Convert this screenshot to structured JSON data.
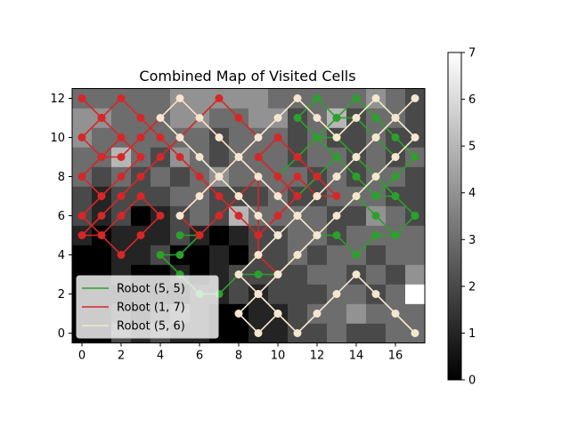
{
  "chart_data": {
    "type": "heatmap",
    "title": "Combined Map of Visited Cells",
    "xlabel": "",
    "ylabel": "",
    "xlim": [
      -0.5,
      17.5
    ],
    "ylim": [
      -0.5,
      12.5
    ],
    "x_ticks": [
      0,
      2,
      4,
      6,
      8,
      10,
      12,
      14,
      16
    ],
    "y_ticks": [
      0,
      2,
      4,
      6,
      8,
      10,
      12
    ],
    "colormap": "gray",
    "colorbar": {
      "min": 0,
      "max": 7,
      "ticks": [
        0,
        1,
        2,
        3,
        4,
        5,
        6,
        7
      ]
    },
    "legend_location": "lower-left",
    "visit_counts": [
      [
        0,
        0,
        2,
        1,
        2,
        1,
        1,
        0,
        0,
        1,
        1,
        2,
        2,
        3,
        2,
        2,
        3,
        3
      ],
      [
        0,
        0,
        1,
        0,
        1,
        2,
        1,
        0,
        0,
        1,
        1,
        2,
        3,
        3,
        4,
        3,
        3,
        3
      ],
      [
        0,
        0,
        0,
        0,
        0,
        0,
        1,
        1,
        2,
        1,
        2,
        2,
        2,
        3,
        3,
        2,
        3,
        7
      ],
      [
        0,
        0,
        1,
        0,
        0,
        1,
        0,
        1,
        2,
        2,
        2,
        2,
        3,
        3,
        2,
        3,
        2,
        4
      ],
      [
        0,
        0,
        1,
        1,
        2,
        0,
        0,
        1,
        0,
        2,
        2,
        3,
        2,
        3,
        3,
        2,
        3,
        3
      ],
      [
        1,
        0,
        1,
        1,
        1,
        2,
        1,
        0,
        1,
        2,
        2,
        3,
        3,
        2,
        3,
        3,
        3,
        3
      ],
      [
        2,
        1,
        2,
        0,
        1,
        2,
        3,
        2,
        5,
        3,
        3,
        3,
        3,
        2,
        2,
        4,
        3,
        2
      ],
      [
        2,
        1,
        2,
        2,
        2,
        3,
        3,
        2,
        2,
        2,
        3,
        2,
        2,
        3,
        3,
        3,
        2,
        2
      ],
      [
        3,
        2,
        3,
        2,
        3,
        2,
        3,
        4,
        3,
        3,
        3,
        3,
        2,
        3,
        2,
        3,
        3,
        2
      ],
      [
        3,
        3,
        5,
        3,
        2,
        4,
        3,
        2,
        3,
        3,
        3,
        2,
        3,
        3,
        2,
        3,
        2,
        3
      ],
      [
        4,
        3,
        3,
        3,
        3,
        3,
        3,
        2,
        3,
        3,
        3,
        2,
        3,
        2,
        2,
        3,
        2,
        2
      ],
      [
        4,
        4,
        3,
        3,
        3,
        4,
        4,
        3,
        3,
        4,
        4,
        2,
        3,
        5,
        2,
        3,
        3,
        2
      ],
      [
        3,
        3,
        3,
        3,
        3,
        4,
        4,
        4,
        4,
        4,
        3,
        3,
        3,
        3,
        3,
        4,
        3,
        2
      ]
    ],
    "series": [
      {
        "name": "Robot (5, 5)",
        "color": "#2ca02c",
        "x": [
          5,
          6,
          5,
          4,
          5,
          6,
          7,
          8,
          9,
          10,
          11,
          12,
          13,
          14,
          15,
          16,
          17,
          16,
          15,
          14,
          13,
          12,
          11,
          10,
          11,
          12,
          13,
          14,
          15,
          16,
          17,
          16,
          15,
          14,
          13,
          12,
          11,
          12,
          13,
          14,
          15,
          16,
          17,
          16,
          15,
          14,
          13,
          12,
          13,
          14,
          15,
          16,
          17,
          16,
          15,
          14,
          15,
          16,
          15
        ],
        "y": [
          5,
          5,
          4,
          4,
          3,
          2,
          2,
          3,
          3,
          3,
          4,
          5,
          5,
          4,
          5,
          5,
          6,
          7,
          7,
          8,
          9,
          8,
          7,
          8,
          9,
          10,
          10,
          11,
          12,
          11,
          10,
          9,
          10,
          11,
          11,
          12,
          11,
          10,
          9,
          8,
          7,
          8,
          9,
          10,
          11,
          12,
          11,
          10,
          10,
          9,
          8,
          7,
          6,
          5,
          6,
          7,
          8,
          9,
          10
        ]
      },
      {
        "name": "Robot (1, 7)",
        "color": "#d62728",
        "x": [
          1,
          0,
          1,
          2,
          1,
          0,
          1,
          2,
          3,
          2,
          1,
          0,
          1,
          2,
          3,
          4,
          3,
          2,
          1,
          0,
          1,
          2,
          3,
          4,
          5,
          6,
          7,
          8,
          9,
          8,
          7,
          6,
          5,
          6,
          7,
          8,
          9,
          10,
          11,
          12,
          13,
          12,
          11,
          10,
          9,
          10,
          11,
          10,
          9,
          8,
          7,
          6,
          5,
          4,
          3,
          2,
          1,
          0,
          1,
          2,
          3,
          4,
          5,
          6,
          7,
          8,
          9,
          9,
          10
        ],
        "y": [
          7,
          8,
          9,
          10,
          11,
          12,
          11,
          10,
          9,
          8,
          7,
          6,
          5,
          6,
          7,
          6,
          5,
          4,
          5,
          5,
          6,
          7,
          8,
          9,
          10,
          11,
          12,
          11,
          10,
          9,
          8,
          7,
          6,
          5,
          6,
          7,
          8,
          7,
          8,
          7,
          7,
          8,
          9,
          10,
          9,
          8,
          7,
          6,
          5,
          6,
          7,
          8,
          9,
          10,
          11,
          12,
          11,
          10,
          9,
          9,
          10,
          11,
          12,
          11,
          10,
          9,
          8,
          4,
          3
        ]
      },
      {
        "name": "Robot (5, 6)",
        "color": "#f5e6d0",
        "x": [
          5,
          6,
          7,
          8,
          9,
          10,
          11,
          12,
          13,
          14,
          15,
          16,
          17,
          16,
          15,
          14,
          13,
          12,
          11,
          10,
          9,
          8,
          9,
          10,
          9,
          8,
          9,
          10,
          11,
          12,
          13,
          14,
          15,
          16,
          17,
          16,
          15,
          14,
          13,
          12,
          11,
          10,
          9,
          8,
          7,
          6,
          5,
          4,
          5,
          6,
          7,
          8,
          9,
          10,
          11,
          12,
          11,
          10,
          9,
          10,
          11,
          12,
          13,
          14,
          15,
          16,
          17
        ],
        "y": [
          6,
          7,
          8,
          9,
          10,
          11,
          12,
          11,
          10,
          11,
          12,
          11,
          10,
          9,
          8,
          7,
          6,
          5,
          4,
          3,
          2,
          1,
          0,
          1,
          2,
          3,
          4,
          5,
          6,
          7,
          8,
          9,
          10,
          11,
          12,
          11,
          10,
          9,
          8,
          7,
          6,
          5,
          6,
          7,
          8,
          9,
          10,
          11,
          12,
          11,
          10,
          9,
          8,
          7,
          6,
          5,
          4,
          3,
          2,
          1,
          0,
          1,
          2,
          3,
          2,
          1,
          0
        ]
      }
    ]
  }
}
